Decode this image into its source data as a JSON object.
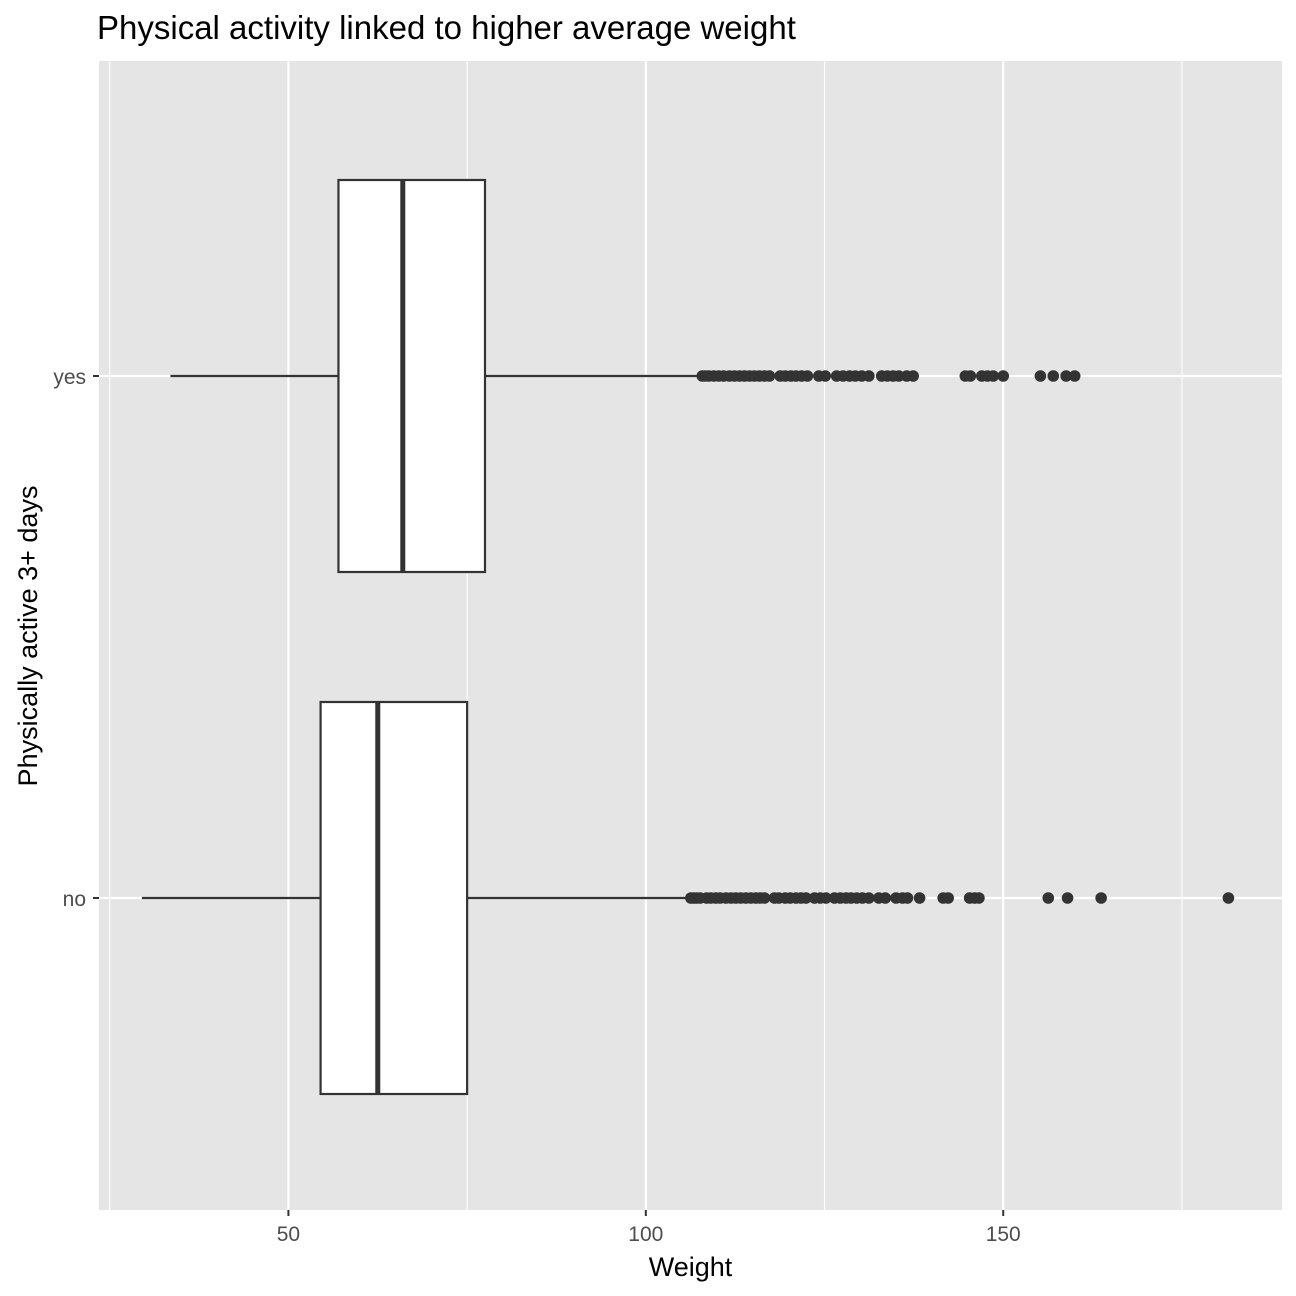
{
  "chart_data": {
    "type": "boxplot",
    "orientation": "horizontal",
    "title": "Physical activity linked to higher average weight",
    "xlabel": "Weight",
    "ylabel": "Physically active 3+ days",
    "xlim": [
      23.5,
      189
    ],
    "x_major_ticks": [
      50,
      100,
      150
    ],
    "x_minor_ticks": [
      25,
      75,
      125,
      175
    ],
    "x_tick_labels": [
      "50",
      "100",
      "150"
    ],
    "categories": [
      "no",
      "yes"
    ],
    "grid": true,
    "legend": "none",
    "colors": {
      "panel_background": "#e5e5e5",
      "gridline": "#ffffff",
      "box_fill": "#ffffff",
      "box_stroke": "#333333",
      "outlier": "#333333",
      "tick_label": "#4d4d4d"
    },
    "series": [
      {
        "category": "no",
        "min": 29.5,
        "q1": 54.5,
        "median": 62.5,
        "q3": 75,
        "max": 106,
        "outliers": [
          106.3,
          106.7,
          107.1,
          107.6,
          108.5,
          109.1,
          109.8,
          110.4,
          111.2,
          111.9,
          112.6,
          113.3,
          114.0,
          114.7,
          115.4,
          116.0,
          116.6,
          118.0,
          118.6,
          119.5,
          120.2,
          121.0,
          121.7,
          122.4,
          123.6,
          124.4,
          125.2,
          126.4,
          127.2,
          128.0,
          128.7,
          129.5,
          130.3,
          131.2,
          132.6,
          133.5,
          135.0,
          135.9,
          136.6,
          138.3,
          141.6,
          142.3,
          145.3,
          146.0,
          146.6,
          156.3,
          159.0,
          163.7,
          181.5
        ]
      },
      {
        "category": "yes",
        "min": 33.5,
        "q1": 57,
        "median": 66,
        "q3": 77.5,
        "max": 107.5,
        "outliers": [
          107.9,
          108.3,
          108.8,
          109.5,
          110.2,
          110.9,
          111.7,
          112.4,
          113.1,
          113.8,
          114.5,
          115.2,
          115.9,
          116.6,
          117.3,
          118.8,
          119.5,
          120.3,
          121.0,
          121.8,
          122.6,
          124.2,
          125.1,
          126.7,
          127.6,
          128.5,
          129.3,
          130.2,
          131.2,
          133.0,
          133.8,
          134.6,
          135.4,
          136.5,
          137.4,
          144.7,
          145.4,
          147.0,
          147.8,
          148.6,
          150.0,
          155.2,
          157.0,
          158.8,
          160.0
        ]
      }
    ]
  }
}
